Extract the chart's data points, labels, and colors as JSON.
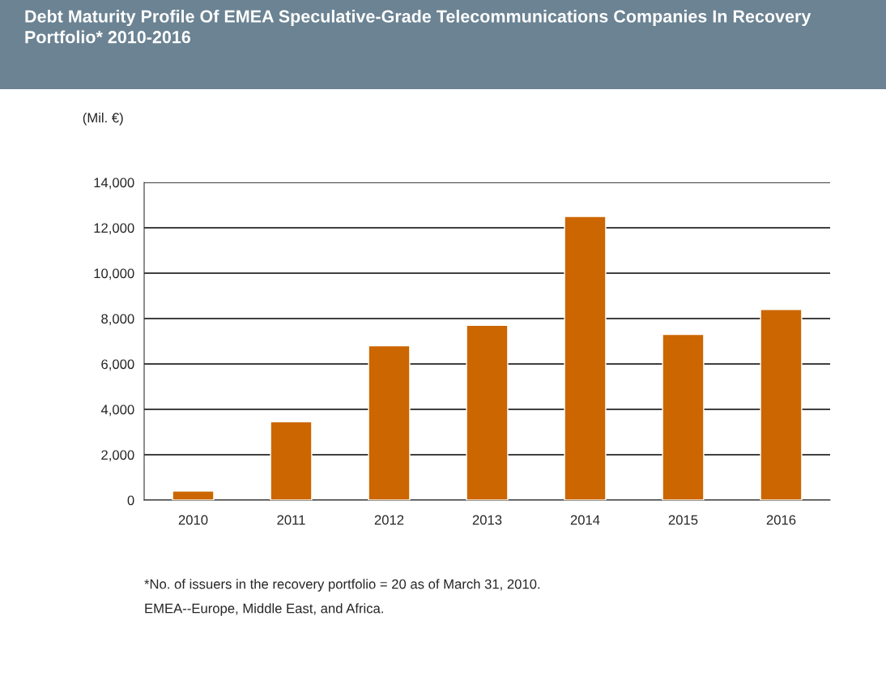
{
  "chart_data": {
    "type": "bar",
    "title": "Debt Maturity Profile Of EMEA Speculative-Grade Telecommunications Companies In Recovery Portfolio* 2010-2016",
    "ylabel": "(Mil. €)",
    "categories": [
      "2010",
      "2011",
      "2012",
      "2013",
      "2014",
      "2015",
      "2016"
    ],
    "values": [
      400,
      3450,
      6800,
      7700,
      12500,
      7300,
      8400
    ],
    "color": "#cc6600",
    "ylim": [
      0,
      14000
    ],
    "yticks": [
      {
        "value": 0,
        "label": "0"
      },
      {
        "value": 2000,
        "label": "2,000"
      },
      {
        "value": 4000,
        "label": "4,000"
      },
      {
        "value": 6000,
        "label": "6,000"
      },
      {
        "value": 8000,
        "label": "8,000"
      },
      {
        "value": 10000,
        "label": "10,000"
      },
      {
        "value": 12000,
        "label": "12,000"
      },
      {
        "value": 14000,
        "label": "14,000"
      }
    ],
    "grid": "y",
    "annotations": [
      "*No. of issuers in the recovery portfolio = 20 as of March 31, 2010.",
      "EMEA--Europe, Middle East, and Africa."
    ]
  }
}
